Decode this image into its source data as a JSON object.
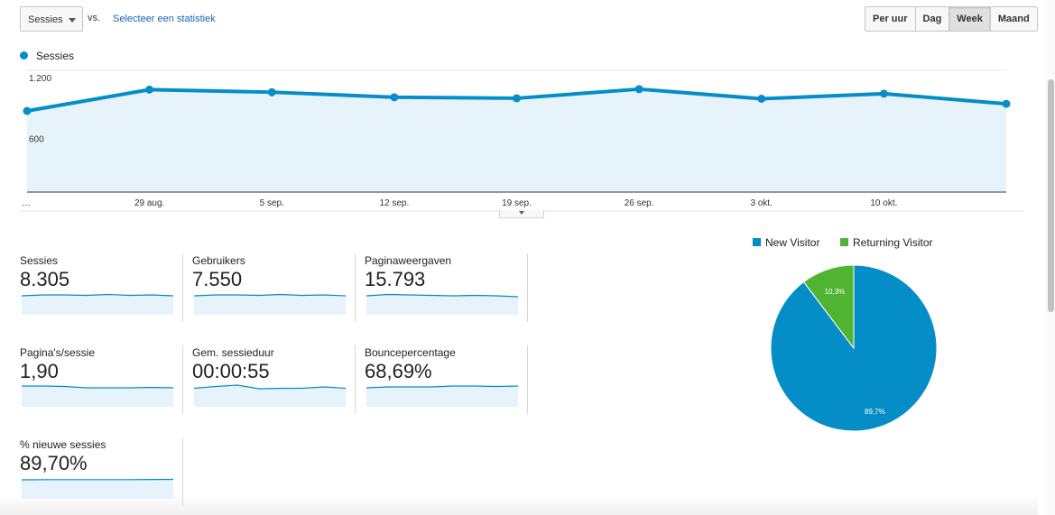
{
  "toolbar": {
    "metric_select": "Sessies",
    "vs_label": "vs.",
    "select_stat_link": "Selecteer een statistiek",
    "granularity": [
      "Per uur",
      "Dag",
      "Week",
      "Maand"
    ],
    "granularity_active": "Week"
  },
  "chart_data": [
    {
      "type": "area",
      "series": [
        {
          "name": "Sessies",
          "values": [
            800,
            1010,
            985,
            935,
            925,
            1015,
            920,
            970,
            870
          ]
        }
      ],
      "x": [
        "…",
        "29 aug.",
        "5 sep.",
        "12 sep.",
        "19 sep.",
        "26 sep.",
        "3 okt.",
        "10 okt.",
        ""
      ],
      "y_ticks": [
        "1.200",
        "600"
      ],
      "ylim": [
        0,
        1200
      ],
      "grid": true,
      "legend": "top-left",
      "color": "#058dc7"
    },
    {
      "type": "pie",
      "categories": [
        "New Visitor",
        "Returning Visitor"
      ],
      "values": [
        89.7,
        10.3
      ],
      "value_labels": [
        "89,7%",
        "10,3%"
      ],
      "colors": [
        "#058dc7",
        "#50b432"
      ],
      "legend": "top"
    }
  ],
  "scorecards": [
    {
      "name": "Sessies",
      "value": "8.305",
      "spark": [
        6,
        5,
        5,
        5.5,
        4.5,
        5.5,
        5,
        6
      ]
    },
    {
      "name": "Gebruikers",
      "value": "7.550",
      "spark": [
        6,
        5,
        5,
        5.5,
        4.5,
        5.5,
        5,
        6
      ]
    },
    {
      "name": "Paginaweergaven",
      "value": "15.793",
      "spark": [
        6,
        4.5,
        5,
        5.5,
        6,
        5.5,
        6,
        7
      ]
    },
    {
      "name": "Pagina's/sessie",
      "value": "1,90",
      "spark": [
        4,
        4,
        4.5,
        6,
        6,
        6,
        5.5,
        6
      ]
    },
    {
      "name": "Gem. sessieduur",
      "value": "00:00:55",
      "spark": [
        6.5,
        4.5,
        3,
        7,
        6.5,
        6.5,
        5,
        6.5
      ]
    },
    {
      "name": "Bouncepercentage",
      "value": "68,69%",
      "spark": [
        6,
        5,
        5,
        5,
        4,
        4,
        4.5,
        4
      ]
    },
    {
      "name": "% nieuwe sessies",
      "value": "89,70%",
      "spark": [
        6,
        5.8,
        5.8,
        5.8,
        5.8,
        5.8,
        5.6,
        5.5
      ]
    }
  ]
}
